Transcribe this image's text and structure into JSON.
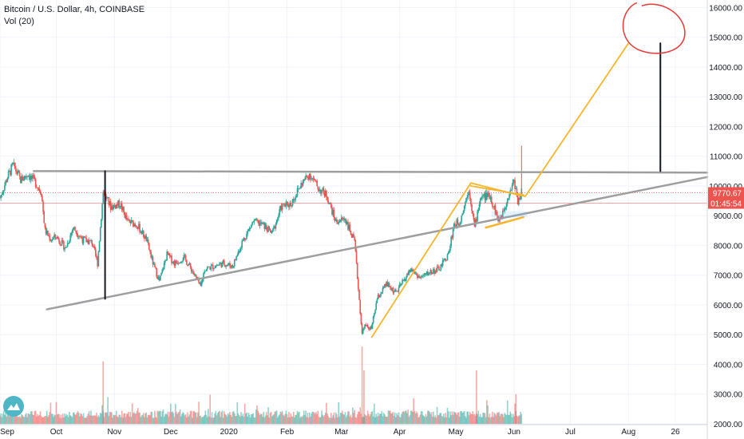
{
  "header": {
    "symbol_line": "Bitcoin / U.S. Dollar, 4h, COINBASE",
    "indicator_line": "Vol (20)"
  },
  "price_axis": {
    "ticks": [
      "16000.00",
      "15000.00",
      "14000.00",
      "13000.00",
      "12000.00",
      "11000.00",
      "10000.00",
      "9000.00",
      "8000.00",
      "7000.00",
      "6000.00",
      "5000.00",
      "4000.00",
      "3000.00",
      "2000.00"
    ]
  },
  "time_axis": {
    "ticks": [
      "Sep",
      "Oct",
      "Nov",
      "Dec",
      "2020",
      "Feb",
      "Mar",
      "Apr",
      "May",
      "Jun",
      "Jul",
      "Aug",
      "26"
    ]
  },
  "badges": {
    "last_price": "9770.67",
    "countdown": "01:45:54"
  },
  "colors": {
    "up": "#26a69a",
    "down": "#ef5350",
    "trendline": "#9e9e9e",
    "projection": "#f7b52c",
    "marker": "#131722",
    "circle": "#e53935",
    "price_badge": "#ef5350"
  },
  "chart_data": {
    "type": "candlestick",
    "x_range": [
      "2019-09-01",
      "2020-09-12"
    ],
    "y_range": [
      2000,
      16200
    ],
    "price_path": [
      [
        "2019-09-01",
        9600
      ],
      [
        "2019-09-05",
        10300
      ],
      [
        "2019-09-08",
        10700
      ],
      [
        "2019-09-12",
        10200
      ],
      [
        "2019-09-16",
        10400
      ],
      [
        "2019-09-20",
        10100
      ],
      [
        "2019-09-23",
        9800
      ],
      [
        "2019-09-25",
        8500
      ],
      [
        "2019-09-28",
        8200
      ],
      [
        "2019-10-01",
        8300
      ],
      [
        "2019-10-06",
        7900
      ],
      [
        "2019-10-10",
        8600
      ],
      [
        "2019-10-15",
        8200
      ],
      [
        "2019-10-20",
        8100
      ],
      [
        "2019-10-23",
        7400
      ],
      [
        "2019-10-26",
        9800
      ],
      [
        "2019-10-30",
        9300
      ],
      [
        "2019-11-04",
        9400
      ],
      [
        "2019-11-08",
        8800
      ],
      [
        "2019-11-13",
        8700
      ],
      [
        "2019-11-18",
        8200
      ],
      [
        "2019-11-22",
        7300
      ],
      [
        "2019-11-25",
        6800
      ],
      [
        "2019-11-29",
        7700
      ],
      [
        "2019-12-03",
        7400
      ],
      [
        "2019-12-08",
        7600
      ],
      [
        "2019-12-12",
        7200
      ],
      [
        "2019-12-17",
        6600
      ],
      [
        "2019-12-19",
        7200
      ],
      [
        "2019-12-24",
        7300
      ],
      [
        "2019-12-29",
        7400
      ],
      [
        "2020-01-03",
        7300
      ],
      [
        "2020-01-08",
        8100
      ],
      [
        "2020-01-14",
        8800
      ],
      [
        "2020-01-19",
        8700
      ],
      [
        "2020-01-24",
        8400
      ],
      [
        "2020-01-29",
        9300
      ],
      [
        "2020-02-03",
        9400
      ],
      [
        "2020-02-09",
        10100
      ],
      [
        "2020-02-13",
        10400
      ],
      [
        "2020-02-18",
        9900
      ],
      [
        "2020-02-22",
        9700
      ],
      [
        "2020-02-27",
        8800
      ],
      [
        "2020-03-03",
        8900
      ],
      [
        "2020-03-08",
        8100
      ],
      [
        "2020-03-12",
        5000
      ],
      [
        "2020-03-13",
        5300
      ],
      [
        "2020-03-17",
        5200
      ],
      [
        "2020-03-20",
        6200
      ],
      [
        "2020-03-25",
        6700
      ],
      [
        "2020-03-30",
        6400
      ],
      [
        "2020-04-03",
        6800
      ],
      [
        "2020-04-07",
        7200
      ],
      [
        "2020-04-12",
        6900
      ],
      [
        "2020-04-17",
        7100
      ],
      [
        "2020-04-22",
        7200
      ],
      [
        "2020-04-27",
        7700
      ],
      [
        "2020-04-30",
        8700
      ],
      [
        "2020-05-03",
        8800
      ],
      [
        "2020-05-08",
        9900
      ],
      [
        "2020-05-11",
        8600
      ],
      [
        "2020-05-14",
        9600
      ],
      [
        "2020-05-19",
        9700
      ],
      [
        "2020-05-24",
        8800
      ],
      [
        "2020-05-28",
        9500
      ],
      [
        "2020-06-01",
        10200
      ],
      [
        "2020-06-03",
        9500
      ],
      [
        "2020-06-05",
        9800
      ]
    ],
    "volume_spikes": [
      [
        "2019-10-26",
        4100
      ],
      [
        "2020-03-12",
        4600
      ],
      [
        "2020-03-13",
        3800
      ],
      [
        "2020-05-12",
        3800
      ],
      [
        "2020-06-02",
        3000
      ]
    ],
    "volume_baseline": 2200,
    "drawings": {
      "resistance": [
        [
          "2019-09-19",
          10500
        ],
        [
          "2020-09-12",
          10450
        ]
      ],
      "support": [
        [
          "2019-09-26",
          5850
        ],
        [
          "2020-09-12",
          10300
        ]
      ],
      "marker_left": [
        [
          "2019-10-27",
          10500
        ],
        [
          "2019-10-27",
          6200
        ]
      ],
      "marker_right": [
        [
          "2020-08-18",
          10500
        ],
        [
          "2020-08-18",
          14800
        ]
      ],
      "projection": [
        [
          "2020-03-17",
          4900
        ],
        [
          "2020-05-09",
          10100
        ],
        [
          "2020-06-03",
          9700
        ],
        [
          "2020-06-07",
          9650
        ],
        [
          "2020-08-01",
          14800
        ]
      ],
      "wedge_low": [
        [
          "2020-05-17",
          8600
        ],
        [
          "2020-06-06",
          8950
        ]
      ],
      "wedge_high": [
        [
          "2020-05-09",
          10000
        ],
        [
          "2020-06-06",
          9700
        ]
      ],
      "last_price_line": 9770.67,
      "countdown_line": 9420,
      "circle_center": [
        "2020-08-14",
        15250
      ]
    }
  }
}
